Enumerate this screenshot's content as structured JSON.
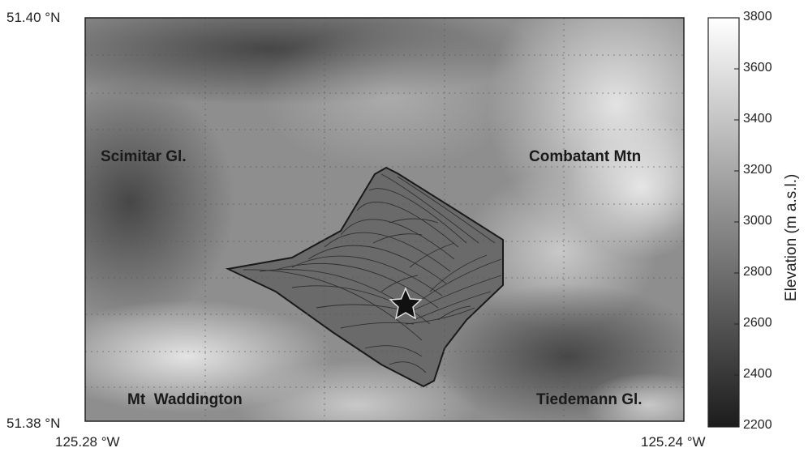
{
  "map": {
    "lat_top": "51.40 °N",
    "lat_bottom": "51.38 °N",
    "lon_left": "125.28 °W",
    "lon_right": "125.24 °W",
    "places": {
      "scimitar": "Scimitar Gl.",
      "combatant": "Combatant Mtn",
      "waddington": "Mt  Waddington",
      "tiedemann": "Tiedemann Gl."
    },
    "marker_icon": "star-icon"
  },
  "colorbar": {
    "label": "Elevation (m a.s.l.)",
    "ticks": [
      "3800",
      "3600",
      "3400",
      "3200",
      "3000",
      "2800",
      "2600",
      "2400",
      "2200"
    ],
    "colormap": [
      "#1c1c1c",
      "#ffffff"
    ]
  }
}
